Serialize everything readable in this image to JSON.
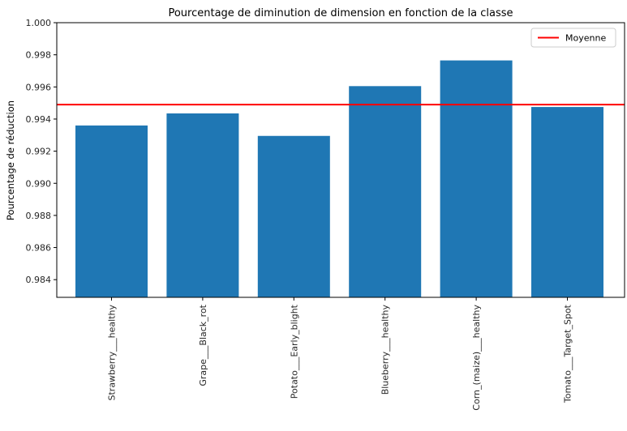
{
  "chart_data": {
    "type": "bar",
    "title": "Pourcentage de diminution de dimension en fonction de la classe",
    "xlabel": "",
    "ylabel": "Pourcentage de réduction",
    "categories": [
      "Strawberry___healthy",
      "Grape___Black_rot",
      "Potato___Early_blight",
      "Blueberry___healthy",
      "Corn_(maize)___healthy",
      "Tomato___Target_Spot"
    ],
    "values": [
      0.9936,
      0.99435,
      0.99295,
      0.99605,
      0.99765,
      0.99475
    ],
    "ylim": [
      0.9829,
      1.0
    ],
    "yticks": [
      "0.984",
      "0.986",
      "0.988",
      "0.990",
      "0.992",
      "0.994",
      "0.996",
      "0.998",
      "1.000"
    ],
    "bar_color": "#1f77b4",
    "mean_line": {
      "label": "Moyenne",
      "value": 0.9949,
      "color": "#ff0000"
    },
    "legend_position": "top-right",
    "grid": false
  }
}
